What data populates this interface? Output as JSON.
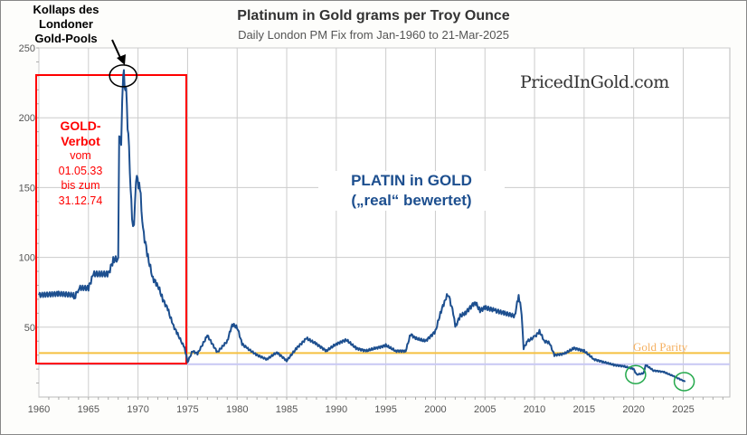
{
  "chart_data": {
    "type": "line",
    "title": "Platinum in Gold grams per Troy Ounce",
    "subtitle": "Daily London PM Fix from Jan-1960 to 21-Mar-2025",
    "xlabel": "",
    "ylabel": "",
    "xlim": [
      1960,
      2029.7
    ],
    "ylim": [
      0,
      250
    ],
    "x_ticks": [
      "1960",
      "1965",
      "1970",
      "1975",
      "1980",
      "1985",
      "1990",
      "1995",
      "2000",
      "2005",
      "2010",
      "2015",
      "2020",
      "2025"
    ],
    "y_ticks": [
      "50",
      "100",
      "150",
      "200",
      "250"
    ],
    "grid": true,
    "series": [
      {
        "name": "Platinum in Gold",
        "color": "#1d4f8f",
        "x": [
          1960,
          1962,
          1963.5,
          1963.6,
          1964,
          1965,
          1965.5,
          1967,
          1967.5,
          1968,
          1968.1,
          1968.3,
          1968.5,
          1968.8,
          1969.1,
          1969.4,
          1969.6,
          1969.8,
          1970.2,
          1970.5,
          1971,
          1971.5,
          1972,
          1972.5,
          1973,
          1973.5,
          1974,
          1974.7,
          1975,
          1975.5,
          1976,
          1977,
          1978,
          1979,
          1979.5,
          1980,
          1980.5,
          1981,
          1982,
          1983,
          1984,
          1985,
          1986,
          1987,
          1988,
          1989,
          1990,
          1991,
          1992,
          1993,
          1994,
          1995,
          1996,
          1997,
          1997.5,
          1998,
          1999,
          2000,
          2000.5,
          2001,
          2001.3,
          2001.8,
          2002,
          2002.5,
          2003,
          2004,
          2004.5,
          2005,
          2006,
          2007,
          2008,
          2008.4,
          2008.7,
          2008.9,
          2009.3,
          2010,
          2010.5,
          2011,
          2011.5,
          2012,
          2013,
          2014,
          2015,
          2016,
          2017,
          2018,
          2019,
          2020,
          2020.3,
          2021,
          2021.2,
          2022,
          2023,
          2024,
          2025.2
        ],
        "y": [
          73,
          74,
          73,
          71,
          78,
          78,
          88,
          88,
          98,
          99,
          190,
          185,
          232,
          218,
          175,
          126,
          125,
          158,
          150,
          120,
          100,
          85,
          80,
          70,
          63,
          52,
          45,
          35,
          25,
          33,
          31,
          44,
          32,
          40,
          52,
          50,
          38,
          35,
          30,
          27,
          32,
          26,
          35,
          42,
          38,
          33,
          38,
          41,
          35,
          33,
          35,
          37,
          33,
          33,
          45,
          42,
          40,
          47,
          60,
          70,
          74,
          60,
          50,
          58,
          60,
          68,
          62,
          64,
          62,
          60,
          58,
          73,
          60,
          35,
          40,
          43,
          47,
          40,
          39,
          30,
          31,
          35,
          33,
          27,
          25,
          23,
          22,
          20,
          16,
          17,
          23,
          19,
          18,
          15,
          11
        ]
      }
    ],
    "reference_lines": [
      {
        "label": "Gold Parity",
        "y": 31.5,
        "color": "#f5c040"
      },
      {
        "label": "",
        "y": 23.5,
        "color": "#c8c8f4"
      }
    ],
    "annotations": {
      "collapse": "Kollaps des Londoner Gold-Pools",
      "collapse_lines": [
        "Kollaps des",
        "Londoner",
        "Gold-Pools"
      ],
      "ban_lines": [
        "GOLD-",
        "Verbot",
        "vom",
        "01.05.33",
        "bis zum",
        "31.12.74"
      ],
      "main_1": "PLATIN in GOLD",
      "main_2": "(„real“ bewertet)",
      "watermark": "PricedInGold.com",
      "highlight_circles": [
        {
          "x": 1968.5,
          "y": 230,
          "color": "#000000"
        },
        {
          "x": 2020.2,
          "y": 16,
          "color": "#22a84a"
        },
        {
          "x": 2025.1,
          "y": 11,
          "color": "#22a84a"
        }
      ]
    }
  }
}
